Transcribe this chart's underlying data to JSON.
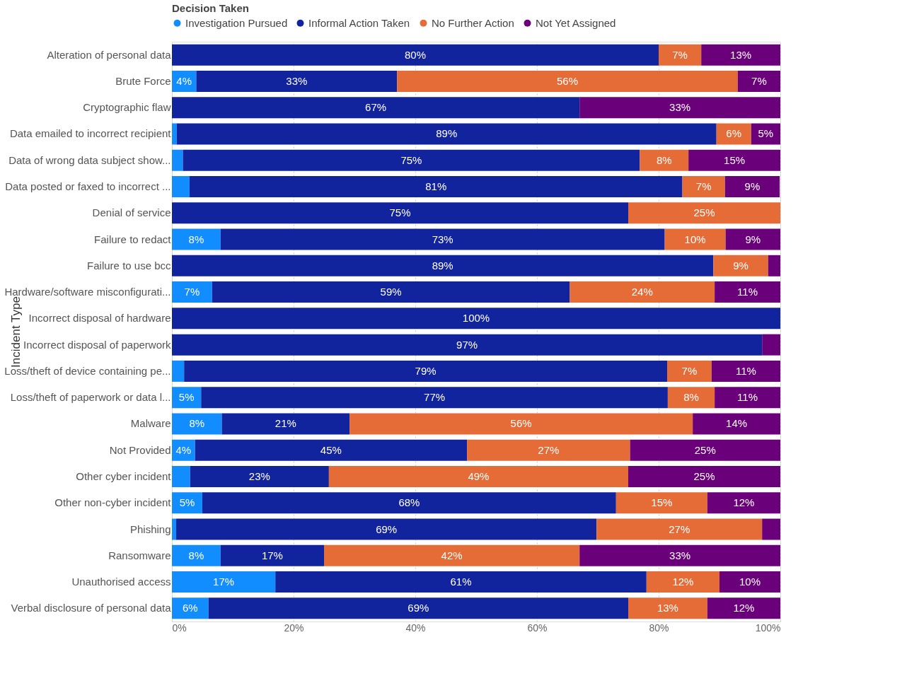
{
  "chart_data": {
    "type": "bar",
    "orientation": "horizontal",
    "stacked": true,
    "ylabel": "Incident Type",
    "legend_title": "Decision Taken",
    "legend": "top",
    "grid": "x",
    "categories": [
      "Alteration of personal data",
      "Brute Force",
      "Cryptographic flaw",
      "Data emailed to incorrect recipient",
      "Data of wrong data subject show...",
      "Data posted or faxed to incorrect ...",
      "Denial of service",
      "Failure to redact",
      "Failure to use bcc",
      "Hardware/software misconfigurati...",
      "Incorrect disposal of hardware",
      "Incorrect disposal of paperwork",
      "Loss/theft of device containing pe...",
      "Loss/theft of paperwork or data l...",
      "Malware",
      "Not Provided",
      "Other cyber incident",
      "Other non-cyber incident",
      "Phishing",
      "Ransomware",
      "Unauthorised access",
      "Verbal disclosure of personal data"
    ],
    "xlim": [
      0,
      100
    ],
    "xticks": [
      {
        "value": 0,
        "label": "0%"
      },
      {
        "value": 20,
        "label": "20%"
      },
      {
        "value": 40,
        "label": "40%"
      },
      {
        "value": 60,
        "label": "60%"
      },
      {
        "value": 80,
        "label": "80%"
      },
      {
        "value": 100,
        "label": "100%"
      }
    ],
    "series": [
      {
        "name": "Investigation Pursued",
        "color": "#118dff",
        "values": [
          0,
          4,
          0,
          0.8,
          1.8,
          2.9,
          0,
          8,
          0,
          6.6,
          0,
          0,
          2,
          4.8,
          8.2,
          3.8,
          3,
          5,
          0.7,
          8,
          17,
          6
        ],
        "value_labels": [
          null,
          "4%",
          null,
          null,
          null,
          null,
          null,
          "8%",
          null,
          "7%",
          null,
          null,
          null,
          "5%",
          "8%",
          "4%",
          null,
          "5%",
          null,
          "8%",
          "17%",
          "6%"
        ]
      },
      {
        "name": "Informal Action Taken",
        "color": "#12239e",
        "values": [
          80,
          33,
          67,
          88.7,
          75.1,
          81,
          75,
          73,
          89,
          58.8,
          100,
          97,
          79.4,
          76.7,
          21,
          44.7,
          22.8,
          68,
          69.1,
          17,
          61,
          69
        ],
        "value_labels": [
          "80%",
          "33%",
          "67%",
          "89%",
          "75%",
          "81%",
          "75%",
          "73%",
          "89%",
          "59%",
          "100%",
          "97%",
          "79%",
          "77%",
          "21%",
          "45%",
          "23%",
          "68%",
          "69%",
          "17%",
          "61%",
          "69%"
        ]
      },
      {
        "name": "No Further Action",
        "color": "#e66c37",
        "values": [
          7,
          56,
          0,
          5.7,
          8,
          7,
          25,
          10,
          9,
          23.8,
          0,
          0,
          7.3,
          7.7,
          56.4,
          26.8,
          49.2,
          15,
          27.2,
          42,
          12,
          13
        ],
        "value_labels": [
          "7%",
          "56%",
          null,
          "6%",
          "8%",
          "7%",
          "25%",
          "10%",
          "9%",
          "24%",
          null,
          null,
          "7%",
          "8%",
          "56%",
          "27%",
          "49%",
          "15%",
          "27%",
          "42%",
          "12%",
          "13%"
        ]
      },
      {
        "name": "Not Yet Assigned",
        "color": "#6b007b",
        "values": [
          13,
          7,
          33,
          4.8,
          15.1,
          9,
          0,
          9,
          2,
          10.8,
          0,
          3,
          11.3,
          10.8,
          14.4,
          24.7,
          25,
          12,
          3,
          33,
          10,
          12
        ],
        "value_labels": [
          "13%",
          "7%",
          "33%",
          "5%",
          "15%",
          "9%",
          null,
          "9%",
          null,
          "11%",
          null,
          null,
          "11%",
          "11%",
          "14%",
          "25%",
          "25%",
          "12%",
          null,
          "33%",
          "10%",
          "12%"
        ]
      }
    ]
  }
}
